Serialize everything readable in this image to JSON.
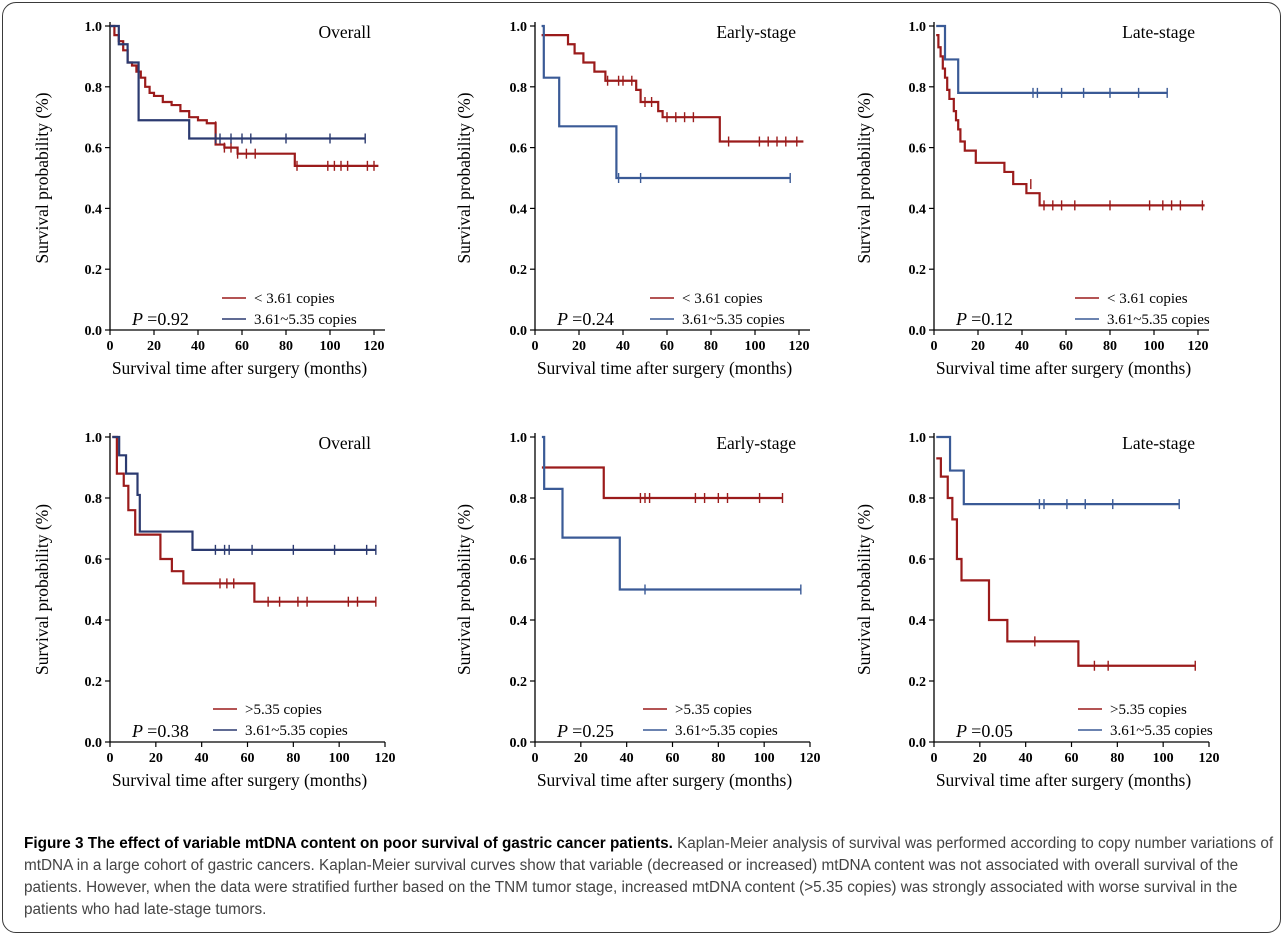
{
  "chart_data": [
    {
      "type": "line",
      "panel_title": "Overall",
      "p_label": "P",
      "p_value": "=0.92",
      "xlabel": "Survival time after surgery (months)",
      "ylabel": "Survival probability (%)",
      "xlim": [
        0,
        125
      ],
      "ylim": [
        0,
        1.0
      ],
      "xticks": [
        0,
        20,
        40,
        60,
        80,
        100,
        120
      ],
      "yticks": [
        0.0,
        0.2,
        0.4,
        0.6,
        0.8,
        1.0
      ],
      "series": [
        {
          "name": "< 3.61 copies",
          "color": "#9b1b1b",
          "steps": [
            [
              0,
              1.0
            ],
            [
              2,
              0.97
            ],
            [
              4,
              0.95
            ],
            [
              6,
              0.92
            ],
            [
              8,
              0.88
            ],
            [
              10,
              0.87
            ],
            [
              12,
              0.85
            ],
            [
              14,
              0.83
            ],
            [
              16,
              0.8
            ],
            [
              18,
              0.78
            ],
            [
              20,
              0.77
            ],
            [
              24,
              0.75
            ],
            [
              28,
              0.74
            ],
            [
              32,
              0.72
            ],
            [
              36,
              0.7
            ],
            [
              40,
              0.69
            ],
            [
              44,
              0.68
            ],
            [
              48,
              0.61
            ],
            [
              52,
              0.6
            ],
            [
              58,
              0.58
            ],
            [
              68,
              0.58
            ],
            [
              84,
              0.54
            ],
            [
              122,
              0.54
            ]
          ],
          "censored": [
            [
              48,
              0.67
            ],
            [
              52,
              0.6
            ],
            [
              55,
              0.6
            ],
            [
              58,
              0.58
            ],
            [
              62,
              0.58
            ],
            [
              66,
              0.58
            ],
            [
              85,
              0.54
            ],
            [
              99,
              0.54
            ],
            [
              102,
              0.54
            ],
            [
              105,
              0.54
            ],
            [
              108,
              0.54
            ],
            [
              117,
              0.54
            ],
            [
              120,
              0.54
            ]
          ]
        },
        {
          "name": "3.61~5.35 copies",
          "color": "#2b3a70",
          "steps": [
            [
              0,
              1.0
            ],
            [
              4,
              0.94
            ],
            [
              8,
              0.88
            ],
            [
              13,
              0.69
            ],
            [
              36,
              0.63
            ],
            [
              116,
              0.63
            ]
          ],
          "censored": [
            [
              48,
              0.63
            ],
            [
              50,
              0.63
            ],
            [
              55,
              0.63
            ],
            [
              60,
              0.63
            ],
            [
              64,
              0.63
            ],
            [
              80,
              0.63
            ],
            [
              100,
              0.63
            ],
            [
              116,
              0.63
            ]
          ]
        }
      ]
    },
    {
      "type": "line",
      "panel_title": "Early-stage",
      "p_label": "P",
      "p_value": "=0.24",
      "xlabel": "Survival time after surgery (months)",
      "ylabel": "Survival probability (%)",
      "xlim": [
        0,
        125
      ],
      "ylim": [
        0,
        1.0
      ],
      "xticks": [
        0,
        20,
        40,
        60,
        80,
        100,
        120
      ],
      "yticks": [
        0.0,
        0.2,
        0.4,
        0.6,
        0.8,
        1.0
      ],
      "series": [
        {
          "name": "< 3.61 copies",
          "color": "#9b1b1b",
          "steps": [
            [
              3,
              0.97
            ],
            [
              15,
              0.94
            ],
            [
              18,
              0.91
            ],
            [
              22,
              0.88
            ],
            [
              27,
              0.85
            ],
            [
              32,
              0.82
            ],
            [
              46,
              0.79
            ],
            [
              48,
              0.75
            ],
            [
              56,
              0.72
            ],
            [
              58,
              0.7
            ],
            [
              84,
              0.62
            ],
            [
              122,
              0.62
            ]
          ],
          "censored": [
            [
              33,
              0.82
            ],
            [
              38,
              0.82
            ],
            [
              40,
              0.82
            ],
            [
              44,
              0.82
            ],
            [
              50,
              0.75
            ],
            [
              53,
              0.75
            ],
            [
              60,
              0.7
            ],
            [
              64,
              0.7
            ],
            [
              68,
              0.7
            ],
            [
              72,
              0.7
            ],
            [
              88,
              0.62
            ],
            [
              102,
              0.62
            ],
            [
              106,
              0.62
            ],
            [
              110,
              0.62
            ],
            [
              114,
              0.62
            ],
            [
              119,
              0.62
            ]
          ]
        },
        {
          "name": "3.61~5.35 copies",
          "color": "#3a5a96",
          "steps": [
            [
              3,
              1.0
            ],
            [
              4,
              0.83
            ],
            [
              11,
              0.67
            ],
            [
              37,
              0.5
            ],
            [
              116,
              0.5
            ]
          ],
          "censored": [
            [
              38,
              0.5
            ],
            [
              48,
              0.5
            ],
            [
              116,
              0.5
            ]
          ]
        }
      ]
    },
    {
      "type": "line",
      "panel_title": "Late-stage",
      "p_label": "P",
      "p_value": "=0.12",
      "xlabel": "Survival time after surgery (months)",
      "ylabel": "Survival probability (%)",
      "xlim": [
        0,
        125
      ],
      "ylim": [
        0,
        1.0
      ],
      "xticks": [
        0,
        20,
        40,
        60,
        80,
        100,
        120
      ],
      "yticks": [
        0.0,
        0.2,
        0.4,
        0.6,
        0.8,
        1.0
      ],
      "series": [
        {
          "name": "< 3.61 copies",
          "color": "#9b1b1b",
          "steps": [
            [
              1,
              0.97
            ],
            [
              2,
              0.93
            ],
            [
              3,
              0.9
            ],
            [
              4,
              0.86
            ],
            [
              5,
              0.83
            ],
            [
              6,
              0.79
            ],
            [
              7,
              0.76
            ],
            [
              9,
              0.72
            ],
            [
              10,
              0.69
            ],
            [
              11,
              0.66
            ],
            [
              12,
              0.62
            ],
            [
              14,
              0.59
            ],
            [
              19,
              0.55
            ],
            [
              32,
              0.52
            ],
            [
              36,
              0.48
            ],
            [
              42,
              0.45
            ],
            [
              48,
              0.41
            ],
            [
              123,
              0.41
            ]
          ],
          "censored": [
            [
              44,
              0.48
            ],
            [
              50,
              0.41
            ],
            [
              54,
              0.41
            ],
            [
              58,
              0.41
            ],
            [
              64,
              0.41
            ],
            [
              80,
              0.41
            ],
            [
              98,
              0.41
            ],
            [
              104,
              0.41
            ],
            [
              108,
              0.41
            ],
            [
              112,
              0.41
            ],
            [
              122,
              0.41
            ]
          ]
        },
        {
          "name": "3.61~5.35 copies",
          "color": "#3a5a96",
          "steps": [
            [
              1,
              1.0
            ],
            [
              5,
              0.89
            ],
            [
              11,
              0.78
            ],
            [
              106,
              0.78
            ]
          ],
          "censored": [
            [
              45,
              0.78
            ],
            [
              47,
              0.78
            ],
            [
              58,
              0.78
            ],
            [
              68,
              0.78
            ],
            [
              80,
              0.78
            ],
            [
              93,
              0.78
            ],
            [
              106,
              0.78
            ]
          ]
        }
      ]
    },
    {
      "type": "line",
      "panel_title": "Overall",
      "p_label": "P",
      "p_value": "=0.38",
      "xlabel": "Survival time after surgery (months)",
      "ylabel": "Survival probability (%)",
      "xlim": [
        0,
        120
      ],
      "ylim": [
        0,
        1.0
      ],
      "xticks": [
        0,
        20,
        40,
        60,
        80,
        100,
        120
      ],
      "yticks": [
        0.0,
        0.2,
        0.4,
        0.6,
        0.8,
        1.0
      ],
      "series": [
        {
          "name": ">5.35 copies",
          "color": "#9b1b1b",
          "steps": [
            [
              1,
              1.0
            ],
            [
              3,
              0.88
            ],
            [
              6,
              0.84
            ],
            [
              8,
              0.76
            ],
            [
              11,
              0.68
            ],
            [
              22,
              0.6
            ],
            [
              27,
              0.56
            ],
            [
              32,
              0.52
            ],
            [
              63,
              0.46
            ],
            [
              116,
              0.46
            ]
          ],
          "censored": [
            [
              48,
              0.52
            ],
            [
              51,
              0.52
            ],
            [
              54,
              0.52
            ],
            [
              69,
              0.46
            ],
            [
              74,
              0.46
            ],
            [
              82,
              0.46
            ],
            [
              86,
              0.46
            ],
            [
              104,
              0.46
            ],
            [
              108,
              0.46
            ],
            [
              116,
              0.46
            ]
          ]
        },
        {
          "name": "3.61~5.35 copies",
          "color": "#2b3a70",
          "steps": [
            [
              1,
              1.0
            ],
            [
              4,
              0.94
            ],
            [
              7,
              0.88
            ],
            [
              12,
              0.81
            ],
            [
              13,
              0.69
            ],
            [
              36,
              0.63
            ],
            [
              116,
              0.63
            ]
          ],
          "censored": [
            [
              46,
              0.63
            ],
            [
              50,
              0.63
            ],
            [
              52,
              0.63
            ],
            [
              62,
              0.63
            ],
            [
              80,
              0.63
            ],
            [
              98,
              0.63
            ],
            [
              112,
              0.63
            ],
            [
              116,
              0.63
            ]
          ]
        }
      ]
    },
    {
      "type": "line",
      "panel_title": "Early-stage",
      "p_label": "P",
      "p_value": "=0.25",
      "xlabel": "Survival time after surgery (months)",
      "ylabel": "Survival probability (%)",
      "xlim": [
        0,
        120
      ],
      "ylim": [
        0,
        1.0
      ],
      "xticks": [
        0,
        20,
        40,
        60,
        80,
        100,
        120
      ],
      "yticks": [
        0.0,
        0.2,
        0.4,
        0.6,
        0.8,
        1.0
      ],
      "series": [
        {
          "name": ">5.35 copies",
          "color": "#9b1b1b",
          "steps": [
            [
              3,
              0.9
            ],
            [
              30,
              0.8
            ],
            [
              108,
              0.8
            ]
          ],
          "censored": [
            [
              46,
              0.8
            ],
            [
              48,
              0.8
            ],
            [
              50,
              0.8
            ],
            [
              70,
              0.8
            ],
            [
              74,
              0.8
            ],
            [
              80,
              0.8
            ],
            [
              84,
              0.8
            ],
            [
              98,
              0.8
            ],
            [
              108,
              0.8
            ]
          ]
        },
        {
          "name": "3.61~5.35 copies",
          "color": "#3a5a96",
          "steps": [
            [
              3,
              1.0
            ],
            [
              4,
              0.83
            ],
            [
              12,
              0.67
            ],
            [
              37,
              0.5
            ],
            [
              116,
              0.5
            ]
          ],
          "censored": [
            [
              48,
              0.5
            ],
            [
              116,
              0.5
            ]
          ]
        }
      ]
    },
    {
      "type": "line",
      "panel_title": "Late-stage",
      "p_label": "P",
      "p_value": "=0.05",
      "xlabel": "Survival time after surgery (months)",
      "ylabel": "Survival probability (%)",
      "xlim": [
        0,
        120
      ],
      "ylim": [
        0,
        1.0
      ],
      "xticks": [
        0,
        20,
        40,
        60,
        80,
        100,
        120
      ],
      "yticks": [
        0.0,
        0.2,
        0.4,
        0.6,
        0.8,
        1.0
      ],
      "series": [
        {
          "name": ">5.35 copies",
          "color": "#9b1b1b",
          "steps": [
            [
              1,
              0.93
            ],
            [
              3,
              0.87
            ],
            [
              6,
              0.8
            ],
            [
              8,
              0.73
            ],
            [
              10,
              0.6
            ],
            [
              12,
              0.53
            ],
            [
              24,
              0.4
            ],
            [
              32,
              0.33
            ],
            [
              63,
              0.25
            ],
            [
              114,
              0.25
            ]
          ],
          "censored": [
            [
              44,
              0.33
            ],
            [
              70,
              0.25
            ],
            [
              76,
              0.25
            ],
            [
              114,
              0.25
            ]
          ]
        },
        {
          "name": "3.61~5.35 copies",
          "color": "#3a5a96",
          "steps": [
            [
              1,
              1.0
            ],
            [
              7,
              0.89
            ],
            [
              13,
              0.78
            ],
            [
              107,
              0.78
            ]
          ],
          "censored": [
            [
              46,
              0.78
            ],
            [
              48,
              0.78
            ],
            [
              58,
              0.78
            ],
            [
              66,
              0.78
            ],
            [
              78,
              0.78
            ],
            [
              107,
              0.78
            ]
          ]
        }
      ]
    }
  ],
  "caption": {
    "label": "Figure 3 The effect of variable mtDNA content on poor survival of gastric cancer patients.",
    "text": "Kaplan-Meier analysis of survival was performed according to copy number variations of mtDNA in a large cohort of gastric cancers. Kaplan-Meier survival curves show that variable (decreased or increased) mtDNA content was not associated with overall survival of the patients. However, when the data were stratified further based on the TNM tumor stage, increased mtDNA content (>5.35 copies) was strongly associated with worse survival in the patients who had late-stage tumors."
  }
}
